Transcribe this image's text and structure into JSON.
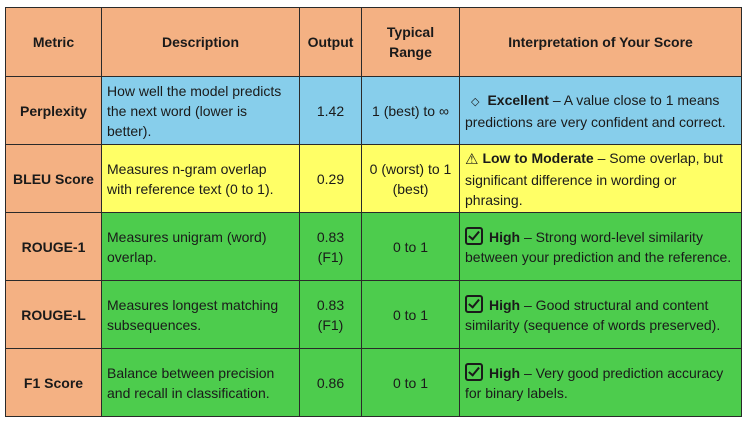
{
  "headers": {
    "metric": "Metric",
    "description": "Description",
    "output": "Output",
    "range": "Typical Range",
    "interpretation": "Interpretation of Your Score"
  },
  "colors": {
    "header": "#f4b183",
    "metric_cell": "#f4b183",
    "perplexity": "#87ceeb",
    "bleu": "#ffff66",
    "green": "#4dcc4d"
  },
  "rows": [
    {
      "metric": "Perplexity",
      "description": "How well the model predicts the next word (lower is better).",
      "output": "1.42",
      "range": "1 (best) to ∞",
      "icon": "diamond-icon",
      "icon_glyph": "◇",
      "level": "Excellent",
      "note": " – A value close to 1 means predictions are very confident and correct."
    },
    {
      "metric": "BLEU Score",
      "description": "Measures n-gram overlap with reference text (0 to 1).",
      "output": "0.29",
      "range": "0 (worst) to 1 (best)",
      "icon": "warning-icon",
      "icon_glyph": "⚠",
      "level": "Low to Moderate",
      "note": " – Some overlap, but significant difference in wording or phrasing."
    },
    {
      "metric": "ROUGE-1",
      "description": "Measures unigram (word) overlap.",
      "output": "0.83 (F1)",
      "range": "0 to 1",
      "icon": "checkbox-icon",
      "level": "High",
      "note": " – Strong word-level similarity between your prediction and the reference."
    },
    {
      "metric": "ROUGE-L",
      "description": "Measures longest matching subsequences.",
      "output": "0.83 (F1)",
      "range": "0 to 1",
      "icon": "checkbox-icon",
      "level": "High",
      "note": " – Good structural and content similarity (sequence of words preserved)."
    },
    {
      "metric": "F1 Score",
      "description": "Balance between precision and recall in classification.",
      "output": "0.86",
      "range": "0 to 1",
      "icon": "checkbox-icon",
      "level": "High",
      "note": " – Very good prediction accuracy for binary labels."
    }
  ]
}
